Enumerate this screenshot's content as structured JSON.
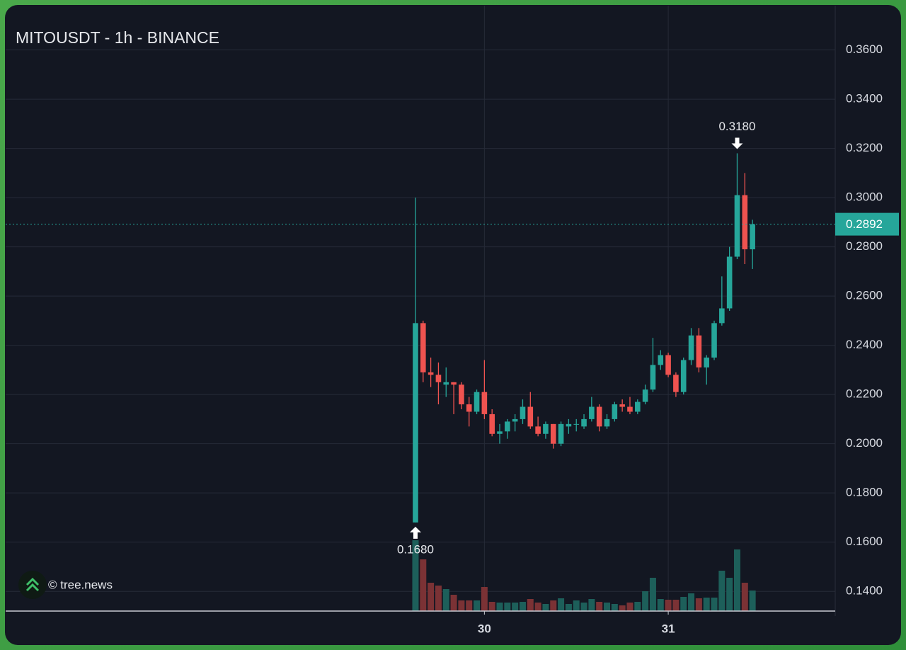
{
  "chart_data": {
    "type": "candlestick",
    "title": "MITOUSDT - 1h - BINANCE",
    "watermark": "© tree.news",
    "x": [
      -9,
      -8,
      -7,
      -6,
      -5,
      -4,
      -3,
      -2,
      -1,
      0,
      1,
      2,
      3,
      4,
      5,
      6,
      7,
      8,
      9,
      10,
      11,
      12,
      13,
      14,
      15,
      16,
      17,
      18,
      19,
      20,
      21,
      22,
      23,
      24,
      25,
      26,
      27,
      28,
      29,
      30,
      31,
      32,
      33,
      34,
      35
    ],
    "open": [
      0.168,
      0.249,
      0.229,
      0.228,
      0.224,
      0.225,
      0.224,
      0.216,
      0.213,
      0.221,
      0.212,
      0.204,
      0.205,
      0.209,
      0.21,
      0.215,
      0.207,
      0.204,
      0.208,
      0.2,
      0.207,
      0.208,
      0.207,
      0.21,
      0.215,
      0.207,
      0.21,
      0.216,
      0.215,
      0.213,
      0.217,
      0.222,
      0.232,
      0.236,
      0.228,
      0.221,
      0.234,
      0.244,
      0.231,
      0.235,
      0.249,
      0.255,
      0.276,
      0.301,
      0.279
    ],
    "high": [
      0.3,
      0.25,
      0.235,
      0.233,
      0.231,
      0.225,
      0.225,
      0.219,
      0.222,
      0.234,
      0.214,
      0.208,
      0.21,
      0.212,
      0.218,
      0.221,
      0.211,
      0.209,
      0.208,
      0.209,
      0.21,
      0.21,
      0.212,
      0.219,
      0.216,
      0.212,
      0.217,
      0.218,
      0.219,
      0.218,
      0.224,
      0.243,
      0.238,
      0.237,
      0.229,
      0.235,
      0.247,
      0.247,
      0.236,
      0.25,
      0.268,
      0.28,
      0.318,
      0.31,
      0.291
    ],
    "low": [
      0.168,
      0.225,
      0.223,
      0.216,
      0.219,
      0.212,
      0.214,
      0.207,
      0.212,
      0.21,
      0.203,
      0.2,
      0.202,
      0.205,
      0.208,
      0.206,
      0.203,
      0.202,
      0.198,
      0.199,
      0.204,
      0.205,
      0.206,
      0.209,
      0.205,
      0.206,
      0.209,
      0.213,
      0.212,
      0.212,
      0.216,
      0.221,
      0.23,
      0.227,
      0.219,
      0.22,
      0.232,
      0.229,
      0.224,
      0.234,
      0.248,
      0.254,
      0.275,
      0.273,
      0.271
    ],
    "close": [
      0.249,
      0.229,
      0.228,
      0.225,
      0.225,
      0.224,
      0.216,
      0.213,
      0.221,
      0.212,
      0.204,
      0.205,
      0.209,
      0.21,
      0.215,
      0.207,
      0.204,
      0.208,
      0.2,
      0.208,
      0.208,
      0.208,
      0.21,
      0.215,
      0.207,
      0.21,
      0.216,
      0.215,
      0.213,
      0.217,
      0.222,
      0.232,
      0.236,
      0.228,
      0.221,
      0.234,
      0.244,
      0.231,
      0.235,
      0.249,
      0.255,
      0.276,
      0.301,
      0.279,
      0.2892
    ],
    "volume": [
      100,
      73,
      40,
      36,
      31,
      23,
      15,
      15,
      15,
      34,
      13,
      12,
      12,
      12,
      13,
      17,
      12,
      10,
      15,
      18,
      10,
      15,
      12,
      17,
      13,
      12,
      10,
      8,
      12,
      13,
      28,
      47,
      17,
      16,
      16,
      20,
      25,
      18,
      19,
      19,
      57,
      47,
      87,
      40,
      29
    ],
    "volume_lim": [
      0,
      855
    ],
    "up_color": "#26a69a",
    "down_color": "#ef5350",
    "volume_up_color": "#1d5f5a",
    "volume_down_color": "#7b3235",
    "xlim": [
      -62.5,
      45.8
    ],
    "xticks": [
      {
        "value": 0,
        "label": "30"
      },
      {
        "value": 24,
        "label": "31"
      }
    ],
    "ylim": [
      0.132,
      0.378
    ],
    "yticks": [
      {
        "value": 0.14,
        "label": "0.1400"
      },
      {
        "value": 0.16,
        "label": "0.1600"
      },
      {
        "value": 0.18,
        "label": "0.1800"
      },
      {
        "value": 0.2,
        "label": "0.2000"
      },
      {
        "value": 0.22,
        "label": "0.2200"
      },
      {
        "value": 0.24,
        "label": "0.2400"
      },
      {
        "value": 0.26,
        "label": "0.2600"
      },
      {
        "value": 0.28,
        "label": "0.2800"
      },
      {
        "value": 0.3,
        "label": "0.3000"
      },
      {
        "value": 0.32,
        "label": "0.3200"
      },
      {
        "value": 0.34,
        "label": "0.3400"
      },
      {
        "value": 0.36,
        "label": "0.3600"
      }
    ],
    "grid": true,
    "last_price": 0.2892,
    "high_label": {
      "value": 0.318,
      "label": "0.3180"
    },
    "low_label": {
      "value": 0.168,
      "label": "0.1680"
    }
  }
}
